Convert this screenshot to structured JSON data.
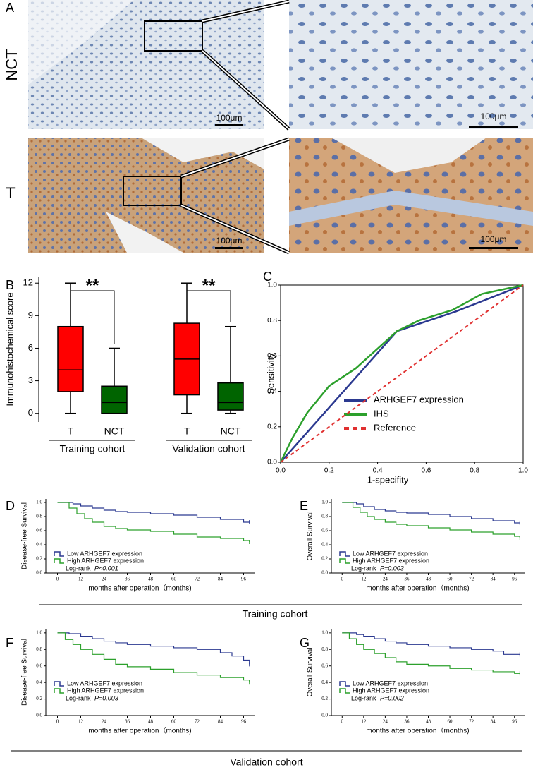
{
  "panel_a": {
    "label": "A",
    "row_labels": [
      "NCT",
      "T"
    ],
    "scale_bars": [
      "100μm",
      "100μm",
      "100μm",
      "100μm"
    ]
  },
  "cohort_groups": [
    "Training cohort",
    "Validation cohort"
  ],
  "chart_data": [
    {
      "type": "box",
      "panel_label": "B",
      "y_label": "Immunohistochemical score",
      "categories": [
        "T",
        "NCT",
        "T",
        "NCT"
      ],
      "groups": [
        "Training cohort",
        "Validation cohort"
      ],
      "colors": [
        "#ff0000",
        "#006400",
        "#ff0000",
        "#006400"
      ],
      "min": [
        0,
        0,
        0,
        0
      ],
      "q1": [
        2,
        0,
        1.7,
        0.3
      ],
      "median": [
        4,
        1,
        5,
        1
      ],
      "q3": [
        8,
        2.5,
        8.3,
        2.8
      ],
      "max": [
        12,
        6,
        12,
        8
      ],
      "annotations": [
        "**",
        "**"
      ],
      "ylim": [
        -0.8,
        12.6
      ],
      "yticks": [
        0,
        3,
        6,
        9,
        12
      ]
    },
    {
      "type": "line",
      "panel_label": "C",
      "x_label": "1-specifity",
      "y_label": "Sensitivity",
      "xlim": [
        0,
        1
      ],
      "ylim": [
        0,
        1
      ],
      "xticks": [
        {
          "value": 0,
          "label": "0.0"
        },
        0.2,
        0.4,
        0.6,
        0.8,
        {
          "value": 1,
          "label": "1.0"
        }
      ],
      "yticks": [
        {
          "value": 0,
          "label": "0.0"
        },
        0.2,
        0.4,
        0.6,
        0.8,
        {
          "value": 1,
          "label": "1.0"
        }
      ],
      "series": [
        {
          "name": "ARHGEF7 expression",
          "color": "#2b3990",
          "dashed": false,
          "x": [
            0,
            0.48,
            0.72,
            1
          ],
          "values": [
            0,
            0.74,
            0.85,
            1
          ]
        },
        {
          "name": "IHS",
          "color": "#2ca02c",
          "dashed": false,
          "x": [
            0,
            0.05,
            0.11,
            0.2,
            0.31,
            0.48,
            0.57,
            0.71,
            0.83,
            1
          ],
          "values": [
            0,
            0.14,
            0.28,
            0.43,
            0.53,
            0.74,
            0.8,
            0.86,
            0.95,
            1
          ]
        },
        {
          "name": "Reference",
          "color": "#e03030",
          "dashed": true,
          "x": [
            0,
            1
          ],
          "values": [
            0,
            1
          ]
        }
      ]
    },
    {
      "type": "step",
      "panel_label": "D",
      "y_label": "Disease-free Survival",
      "x_label": "months after operation（months)",
      "log_rank": "Log-rank",
      "p_value": "P<0.001",
      "xlim": [
        -6,
        102
      ],
      "ylim": [
        0,
        1.05
      ],
      "xticks": [
        0,
        12,
        24,
        36,
        48,
        60,
        72,
        84,
        96
      ],
      "yticks": [
        {
          "value": 0,
          "label": "0.0"
        },
        0.2,
        0.4,
        0.6,
        0.8,
        {
          "value": 1,
          "label": "1.0"
        }
      ],
      "series": [
        {
          "name": "Low ARHGEF7 expression",
          "color": "#2b3990",
          "x": [
            0,
            8,
            12,
            18,
            24,
            30,
            36,
            48,
            60,
            72,
            84,
            96,
            99
          ],
          "values": [
            1,
            0.98,
            0.95,
            0.92,
            0.89,
            0.87,
            0.86,
            0.84,
            0.82,
            0.79,
            0.76,
            0.72,
            0.72
          ]
        },
        {
          "name": "High ARHGEF7 expression",
          "color": "#2ca02c",
          "x": [
            0,
            6,
            10,
            14,
            18,
            24,
            30,
            36,
            48,
            60,
            72,
            84,
            96,
            99
          ],
          "values": [
            1,
            0.92,
            0.84,
            0.77,
            0.72,
            0.66,
            0.63,
            0.61,
            0.59,
            0.55,
            0.51,
            0.49,
            0.46,
            0.44
          ]
        }
      ]
    },
    {
      "type": "step",
      "panel_label": "E",
      "y_label": "Overall Survival",
      "x_label": "months after operation（months)",
      "log_rank": "Log-rank",
      "p_value": "P=0.003",
      "xlim": [
        -6,
        102
      ],
      "ylim": [
        0,
        1.05
      ],
      "xticks": [
        0,
        12,
        24,
        36,
        48,
        60,
        72,
        84,
        96
      ],
      "yticks": [
        {
          "value": 0,
          "label": "0.0"
        },
        0.2,
        0.4,
        0.6,
        0.8,
        {
          "value": 1,
          "label": "1.0"
        }
      ],
      "series": [
        {
          "name": "Low ARHGEF7 expression",
          "color": "#2b3990",
          "x": [
            0,
            8,
            12,
            18,
            24,
            30,
            36,
            48,
            60,
            72,
            84,
            96,
            99
          ],
          "values": [
            1,
            0.98,
            0.94,
            0.9,
            0.88,
            0.86,
            0.85,
            0.83,
            0.8,
            0.77,
            0.74,
            0.71,
            0.71
          ]
        },
        {
          "name": "High ARHGEF7 expression",
          "color": "#2ca02c",
          "x": [
            0,
            6,
            10,
            14,
            18,
            24,
            30,
            36,
            48,
            60,
            72,
            84,
            96,
            99
          ],
          "values": [
            1,
            0.93,
            0.86,
            0.8,
            0.76,
            0.72,
            0.69,
            0.67,
            0.64,
            0.61,
            0.58,
            0.55,
            0.52,
            0.5
          ]
        }
      ]
    },
    {
      "type": "step",
      "panel_label": "F",
      "y_label": "Disease-free Survival",
      "x_label": "months after operation（months)",
      "log_rank": "Log-rank",
      "p_value": "P=0.003",
      "xlim": [
        -6,
        102
      ],
      "ylim": [
        0,
        1.05
      ],
      "xticks": [
        0,
        12,
        24,
        36,
        48,
        60,
        72,
        84,
        96
      ],
      "yticks": [
        {
          "value": 0,
          "label": "0.0"
        },
        0.2,
        0.4,
        0.6,
        0.8,
        {
          "value": 1,
          "label": "1.0"
        }
      ],
      "series": [
        {
          "name": "Low ARHGEF7 expression",
          "color": "#2b3990",
          "x": [
            0,
            6,
            12,
            18,
            24,
            30,
            36,
            48,
            60,
            72,
            84,
            90,
            96,
            99
          ],
          "values": [
            1,
            0.99,
            0.96,
            0.93,
            0.9,
            0.88,
            0.86,
            0.84,
            0.82,
            0.8,
            0.76,
            0.72,
            0.67,
            0.62
          ]
        },
        {
          "name": "High ARHGEF7 expression",
          "color": "#2ca02c",
          "x": [
            0,
            4,
            8,
            12,
            18,
            24,
            30,
            36,
            48,
            60,
            72,
            84,
            96,
            99
          ],
          "values": [
            1,
            0.92,
            0.86,
            0.8,
            0.74,
            0.68,
            0.62,
            0.59,
            0.56,
            0.52,
            0.49,
            0.46,
            0.43,
            0.4
          ]
        }
      ]
    },
    {
      "type": "step",
      "panel_label": "G",
      "y_label": "Overall Survival",
      "x_label": "months after operation（months)",
      "log_rank": "Log-rank",
      "p_value": "P=0.002",
      "xlim": [
        -6,
        102
      ],
      "ylim": [
        0,
        1.05
      ],
      "xticks": [
        0,
        12,
        24,
        36,
        48,
        60,
        72,
        84,
        96
      ],
      "yticks": [
        {
          "value": 0,
          "label": "0.0"
        },
        0.2,
        0.4,
        0.6,
        0.8,
        {
          "value": 1,
          "label": "1.0"
        }
      ],
      "series": [
        {
          "name": "Low ARHGEF7 expression",
          "color": "#2b3990",
          "x": [
            0,
            8,
            12,
            18,
            24,
            30,
            36,
            48,
            60,
            72,
            84,
            90,
            99
          ],
          "values": [
            1,
            0.98,
            0.96,
            0.93,
            0.9,
            0.88,
            0.86,
            0.84,
            0.82,
            0.8,
            0.78,
            0.74,
            0.74
          ]
        },
        {
          "name": "High ARHGEF7 expression",
          "color": "#2ca02c",
          "x": [
            0,
            4,
            8,
            12,
            18,
            24,
            30,
            36,
            48,
            60,
            72,
            84,
            96,
            99
          ],
          "values": [
            1,
            0.93,
            0.86,
            0.8,
            0.75,
            0.7,
            0.65,
            0.62,
            0.6,
            0.57,
            0.55,
            0.53,
            0.51,
            0.51
          ]
        }
      ]
    }
  ]
}
